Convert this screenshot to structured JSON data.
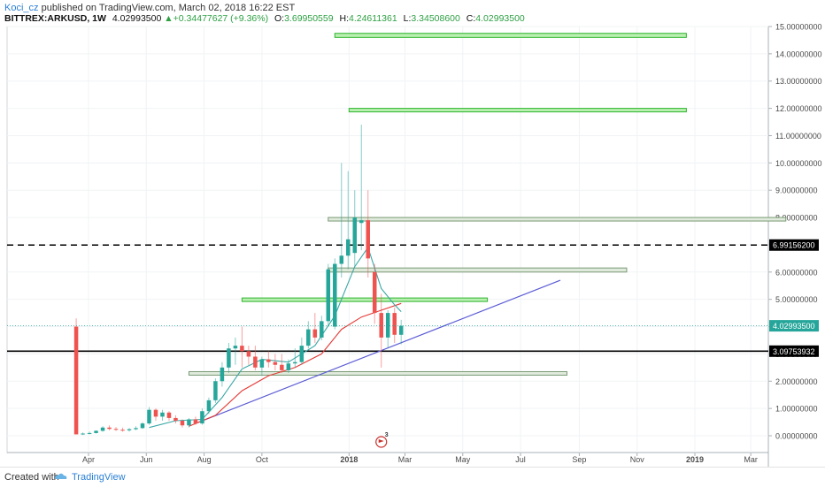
{
  "header": {
    "author": "Koci_cz",
    "published_text": "published on TradingView.com, March 02, 2018 16:22 EST",
    "symbol": "BITTREX:ARKUSD, 1W",
    "last": "4.02993500",
    "change": "+0.34477627 (+9.36%)",
    "o_label": "O:",
    "o_value": "3.69950559",
    "h_label": "H:",
    "h_value": "4.24611361",
    "l_label": "L:",
    "l_value": "3.34508600",
    "c_label": "C:",
    "c_value": "4.02993500"
  },
  "footer": {
    "created_with": "Created with",
    "brand": "TradingView"
  },
  "event_badge": {
    "count": "3",
    "icon": "flag-icon"
  },
  "colors": {
    "up": "#26a69a",
    "down": "#ef5350",
    "grid": "#f0f3f5",
    "ma_fast": "#3aa6a6",
    "ma_slow": "#e53935",
    "trendline": "#5b5bd6",
    "zone_green": "#b9efb0",
    "zone_grey": "#dfeadc"
  },
  "chart_data": {
    "type": "candlestick",
    "y_axis": {
      "min": 0,
      "max": 15,
      "ticks": [
        "0.00000000",
        "1.00000000",
        "2.00000000",
        "3.00000000",
        "4.00000000",
        "5.00000000",
        "6.00000000",
        "7.00000000",
        "8.00000000",
        "9.00000000",
        "10.00000000",
        "11.00000000",
        "12.00000000",
        "13.00000000",
        "14.00000000",
        "15.00000000"
      ]
    },
    "x_axis": {
      "ticks": [
        {
          "label": "Apr",
          "date": "2017-04-01"
        },
        {
          "label": "Jun",
          "date": "2017-06-01"
        },
        {
          "label": "Aug",
          "date": "2017-08-01"
        },
        {
          "label": "Oct",
          "date": "2017-10-01"
        },
        {
          "label": "2018",
          "date": "2018-01-01"
        },
        {
          "label": "Mar",
          "date": "2018-03-01"
        },
        {
          "label": "May",
          "date": "2018-05-01"
        },
        {
          "label": "Jul",
          "date": "2018-07-01"
        },
        {
          "label": "Sep",
          "date": "2018-09-01"
        },
        {
          "label": "Nov",
          "date": "2018-11-01"
        },
        {
          "label": "2019",
          "date": "2019-01-01"
        },
        {
          "label": "Mar",
          "date": "2019-03-01"
        }
      ]
    },
    "price_labels": [
      {
        "value": "4.02993500",
        "price": 4.03,
        "color": "#26a69a"
      },
      {
        "value": "6.99156200",
        "price": 6.99,
        "color": "#000000"
      },
      {
        "value": "3.09753932",
        "price": 3.1,
        "color": "#000000"
      }
    ],
    "candles": [
      {
        "date": "2017-03-19",
        "o": 4.0,
        "h": 4.3,
        "l": 0.05,
        "c": 0.05
      },
      {
        "date": "2017-03-26",
        "o": 0.05,
        "h": 0.12,
        "l": 0.03,
        "c": 0.08
      },
      {
        "date": "2017-04-02",
        "o": 0.08,
        "h": 0.15,
        "l": 0.05,
        "c": 0.1
      },
      {
        "date": "2017-04-09",
        "o": 0.1,
        "h": 0.2,
        "l": 0.08,
        "c": 0.18
      },
      {
        "date": "2017-04-16",
        "o": 0.18,
        "h": 0.35,
        "l": 0.15,
        "c": 0.3
      },
      {
        "date": "2017-04-23",
        "o": 0.3,
        "h": 0.38,
        "l": 0.2,
        "c": 0.25
      },
      {
        "date": "2017-04-30",
        "o": 0.25,
        "h": 0.32,
        "l": 0.18,
        "c": 0.22
      },
      {
        "date": "2017-05-07",
        "o": 0.22,
        "h": 0.3,
        "l": 0.15,
        "c": 0.2
      },
      {
        "date": "2017-05-14",
        "o": 0.2,
        "h": 0.28,
        "l": 0.15,
        "c": 0.24
      },
      {
        "date": "2017-05-21",
        "o": 0.24,
        "h": 0.35,
        "l": 0.2,
        "c": 0.28
      },
      {
        "date": "2017-05-28",
        "o": 0.28,
        "h": 0.5,
        "l": 0.25,
        "c": 0.45
      },
      {
        "date": "2017-06-04",
        "o": 0.45,
        "h": 1.05,
        "l": 0.4,
        "c": 0.95
      },
      {
        "date": "2017-06-11",
        "o": 0.95,
        "h": 1.0,
        "l": 0.55,
        "c": 0.7
      },
      {
        "date": "2017-06-18",
        "o": 0.7,
        "h": 0.95,
        "l": 0.55,
        "c": 0.85
      },
      {
        "date": "2017-06-25",
        "o": 0.85,
        "h": 0.9,
        "l": 0.55,
        "c": 0.65
      },
      {
        "date": "2017-07-02",
        "o": 0.65,
        "h": 0.75,
        "l": 0.45,
        "c": 0.55
      },
      {
        "date": "2017-07-09",
        "o": 0.55,
        "h": 0.6,
        "l": 0.3,
        "c": 0.38
      },
      {
        "date": "2017-07-16",
        "o": 0.38,
        "h": 0.65,
        "l": 0.3,
        "c": 0.6
      },
      {
        "date": "2017-07-23",
        "o": 0.6,
        "h": 0.7,
        "l": 0.4,
        "c": 0.45
      },
      {
        "date": "2017-07-30",
        "o": 0.45,
        "h": 1.0,
        "l": 0.4,
        "c": 0.9
      },
      {
        "date": "2017-08-06",
        "o": 0.9,
        "h": 1.4,
        "l": 0.8,
        "c": 1.3
      },
      {
        "date": "2017-08-13",
        "o": 1.3,
        "h": 2.1,
        "l": 1.2,
        "c": 2.0
      },
      {
        "date": "2017-08-20",
        "o": 2.0,
        "h": 2.7,
        "l": 1.8,
        "c": 2.5
      },
      {
        "date": "2017-08-27",
        "o": 2.5,
        "h": 3.4,
        "l": 2.3,
        "c": 3.2
      },
      {
        "date": "2017-09-03",
        "o": 3.2,
        "h": 3.6,
        "l": 2.6,
        "c": 3.3
      },
      {
        "date": "2017-09-10",
        "o": 3.3,
        "h": 4.0,
        "l": 2.5,
        "c": 3.1
      },
      {
        "date": "2017-09-17",
        "o": 3.1,
        "h": 3.3,
        "l": 2.6,
        "c": 2.9
      },
      {
        "date": "2017-09-24",
        "o": 2.9,
        "h": 3.3,
        "l": 2.4,
        "c": 2.5
      },
      {
        "date": "2017-10-01",
        "o": 2.5,
        "h": 2.9,
        "l": 2.2,
        "c": 2.8
      },
      {
        "date": "2017-10-08",
        "o": 2.8,
        "h": 3.1,
        "l": 2.5,
        "c": 2.7
      },
      {
        "date": "2017-10-15",
        "o": 2.7,
        "h": 3.0,
        "l": 2.4,
        "c": 2.6
      },
      {
        "date": "2017-10-22",
        "o": 2.6,
        "h": 3.0,
        "l": 2.3,
        "c": 2.4
      },
      {
        "date": "2017-10-29",
        "o": 2.4,
        "h": 2.8,
        "l": 2.3,
        "c": 2.65
      },
      {
        "date": "2017-11-05",
        "o": 2.65,
        "h": 3.2,
        "l": 2.5,
        "c": 2.7
      },
      {
        "date": "2017-11-12",
        "o": 2.7,
        "h": 3.6,
        "l": 2.6,
        "c": 3.3
      },
      {
        "date": "2017-11-19",
        "o": 3.3,
        "h": 4.2,
        "l": 3.2,
        "c": 3.9
      },
      {
        "date": "2017-11-26",
        "o": 3.9,
        "h": 4.5,
        "l": 3.4,
        "c": 3.6
      },
      {
        "date": "2017-12-03",
        "o": 3.6,
        "h": 4.4,
        "l": 3.5,
        "c": 4.2
      },
      {
        "date": "2017-12-10",
        "o": 4.2,
        "h": 6.3,
        "l": 4.0,
        "c": 6.1
      },
      {
        "date": "2017-12-17",
        "o": 4.0,
        "h": 6.5,
        "l": 3.9,
        "c": 6.3
      },
      {
        "date": "2017-12-24",
        "o": 6.3,
        "h": 10.0,
        "l": 5.8,
        "c": 6.6
      },
      {
        "date": "2017-12-31",
        "o": 6.6,
        "h": 9.7,
        "l": 6.1,
        "c": 7.2
      },
      {
        "date": "2018-01-07",
        "o": 6.7,
        "h": 9.0,
        "l": 6.2,
        "c": 8.0
      },
      {
        "date": "2018-01-14",
        "o": 7.8,
        "h": 11.4,
        "l": 6.8,
        "c": 7.9
      },
      {
        "date": "2018-01-21",
        "o": 7.9,
        "h": 9.0,
        "l": 5.8,
        "c": 6.5
      },
      {
        "date": "2018-01-28",
        "o": 6.0,
        "h": 6.3,
        "l": 4.1,
        "c": 4.5
      },
      {
        "date": "2018-02-04",
        "o": 4.5,
        "h": 5.2,
        "l": 2.5,
        "c": 3.6
      },
      {
        "date": "2018-02-11",
        "o": 3.6,
        "h": 4.6,
        "l": 3.2,
        "c": 4.5
      },
      {
        "date": "2018-02-18",
        "o": 4.5,
        "h": 4.7,
        "l": 3.4,
        "c": 3.7
      },
      {
        "date": "2018-02-25",
        "o": 3.7,
        "h": 4.25,
        "l": 3.35,
        "c": 4.03
      }
    ],
    "moving_average_fast": [
      {
        "date": "2017-06-04",
        "v": 0.3
      },
      {
        "date": "2017-07-02",
        "v": 0.55
      },
      {
        "date": "2017-07-30",
        "v": 0.6
      },
      {
        "date": "2017-08-20",
        "v": 1.4
      },
      {
        "date": "2017-09-10",
        "v": 2.45
      },
      {
        "date": "2017-10-01",
        "v": 2.8
      },
      {
        "date": "2017-10-29",
        "v": 2.7
      },
      {
        "date": "2017-11-26",
        "v": 3.3
      },
      {
        "date": "2017-12-17",
        "v": 4.4
      },
      {
        "date": "2018-01-07",
        "v": 6.2
      },
      {
        "date": "2018-01-21",
        "v": 6.9
      },
      {
        "date": "2018-02-04",
        "v": 5.4
      },
      {
        "date": "2018-02-18",
        "v": 4.8
      },
      {
        "date": "2018-02-25",
        "v": 4.55
      }
    ],
    "moving_average_slow": [
      {
        "date": "2017-07-16",
        "v": 0.35
      },
      {
        "date": "2017-08-13",
        "v": 0.75
      },
      {
        "date": "2017-09-10",
        "v": 1.65
      },
      {
        "date": "2017-10-08",
        "v": 2.2
      },
      {
        "date": "2017-11-05",
        "v": 2.5
      },
      {
        "date": "2017-12-03",
        "v": 3.0
      },
      {
        "date": "2017-12-24",
        "v": 3.9
      },
      {
        "date": "2018-01-14",
        "v": 4.35
      },
      {
        "date": "2018-02-04",
        "v": 4.6
      },
      {
        "date": "2018-02-25",
        "v": 4.85
      }
    ],
    "trendline": {
      "from": {
        "date": "2017-07-23",
        "v": 0.45
      },
      "to": {
        "date": "2018-08-12",
        "v": 5.7
      }
    },
    "horizontal_lines": [
      {
        "price": 6.99,
        "style": "dashed"
      },
      {
        "price": 3.1,
        "style": "solid"
      }
    ],
    "zones": [
      {
        "from": "2017-12-17",
        "to": "2018-12-23",
        "price_low": 14.6,
        "price_high": 14.75,
        "kind": "green"
      },
      {
        "from": "2018-01-01",
        "to": "2018-12-23",
        "price_low": 11.9,
        "price_high": 12.0,
        "kind": "green"
      },
      {
        "from": "2017-12-10",
        "to": "2019-04-07",
        "price_low": 7.9,
        "price_high": 8.0,
        "kind": "grey"
      },
      {
        "from": "2017-12-10",
        "to": "2018-10-21",
        "price_low": 6.0,
        "price_high": 6.15,
        "kind": "grey"
      },
      {
        "from": "2017-09-10",
        "to": "2018-05-27",
        "price_low": 4.95,
        "price_high": 5.05,
        "kind": "green"
      },
      {
        "from": "2017-07-16",
        "to": "2018-08-19",
        "price_low": 2.25,
        "price_high": 2.35,
        "kind": "grey"
      }
    ]
  }
}
